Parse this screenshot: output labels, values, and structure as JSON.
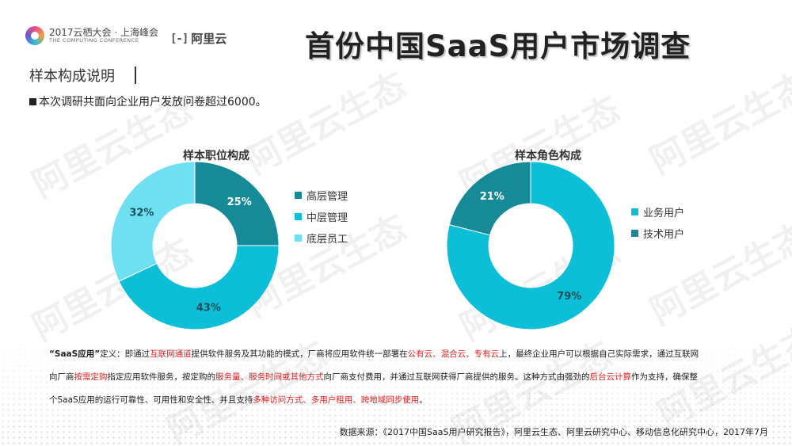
{
  "header": {
    "conf_main": "2017云栖大会 · 上海峰会",
    "conf_sub": "THE COMPUTING CONFERENCE",
    "ali_icon": "[-]",
    "ali_text": "阿里云",
    "title": "首份中国SaaS用户市场调查"
  },
  "watermark_text": "阿里云生态",
  "section": {
    "title": "样本构成说明",
    "bullet": "本次调研共面向企业用户发放问卷超过6000。"
  },
  "chart_data": [
    {
      "type": "pie",
      "title": "样本职位构成",
      "categories": [
        "高层管理",
        "中层管理",
        "底层员工"
      ],
      "values": [
        25,
        43,
        32
      ],
      "value_labels": [
        "25%",
        "43%",
        "32%"
      ],
      "colors": [
        "#168a96",
        "#0cbfd7",
        "#6fe0f2"
      ],
      "legend_position": "right"
    },
    {
      "type": "pie",
      "title": "样本角色构成",
      "categories": [
        "业务用户",
        "技术用户"
      ],
      "values": [
        79,
        21
      ],
      "value_labels": [
        "79%",
        "21%"
      ],
      "colors": [
        "#0cbfd7",
        "#168a96"
      ],
      "legend_position": "right"
    }
  ],
  "definition": {
    "line1": [
      {
        "t": "“SaaS应用”",
        "c": "bold"
      },
      {
        "t": "定义：即通过",
        "c": ""
      },
      {
        "t": "互联网通道",
        "c": "red"
      },
      {
        "t": "提供软件服务及其功能的模式，厂商将应用软件统一部署在",
        "c": ""
      },
      {
        "t": "公有云、混合云、专有云",
        "c": "red"
      },
      {
        "t": "上，最终企业用户可以根据自己实际需求，通过互联网",
        "c": ""
      }
    ],
    "line2": [
      {
        "t": "向厂商",
        "c": ""
      },
      {
        "t": "按需定购",
        "c": "red"
      },
      {
        "t": "指定应用软件服务，按定购的",
        "c": ""
      },
      {
        "t": "服务量、服务时间或其他方式",
        "c": "red"
      },
      {
        "t": "向厂商支付费用，并通过互联网获得厂商提供的服务。这种方式由强劲的",
        "c": ""
      },
      {
        "t": "后台云计算",
        "c": "red"
      },
      {
        "t": "作为支持，确保整",
        "c": ""
      }
    ],
    "line3": [
      {
        "t": "个SaaS应用的运行可靠性、可用性和安全性、并且支持",
        "c": ""
      },
      {
        "t": "多种访问方式、多用户租用、跨地域同步使用",
        "c": "red"
      },
      {
        "t": "。",
        "c": ""
      }
    ]
  },
  "source": "数据来源：《2017中国SaaS用户研究报告》，阿里云生态、阿里云研究中心、移动信息化研究中心，2017年7月"
}
